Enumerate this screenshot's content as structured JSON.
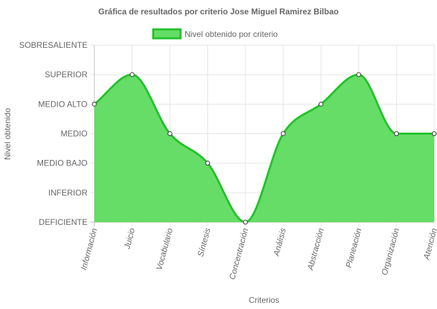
{
  "chart_data": {
    "type": "area",
    "title": "Gráfica de resultados por criterio Jose Miguel Ramirez Bilbao",
    "xlabel": "Criterios",
    "ylabel": "Nivel obtenido",
    "levels": [
      "DEFICIENTE",
      "INFERIOR",
      "MEDIO BAJO",
      "MEDIO",
      "MEDIO ALTO",
      "SUPERIOR",
      "SOBRESALIENTE"
    ],
    "categories": [
      "Información",
      "Juicio",
      "Vocabulario",
      "Síntesis",
      "Concentración",
      "Análisis",
      "Abstracción",
      "Planeación",
      "Organización",
      "Atención"
    ],
    "series": [
      {
        "name": "Nivel obtenido por criterio",
        "values": [
          4,
          5,
          3,
          2,
          0,
          3,
          4,
          5,
          3,
          3
        ]
      }
    ],
    "ylim": [
      0,
      6
    ],
    "grid": true,
    "legend_position": "top",
    "colors": {
      "line": "#22c22a",
      "fill": "#66dd66",
      "grid": "#e5e5e5",
      "axis": "#bfbfbf",
      "text": "#666666"
    }
  }
}
